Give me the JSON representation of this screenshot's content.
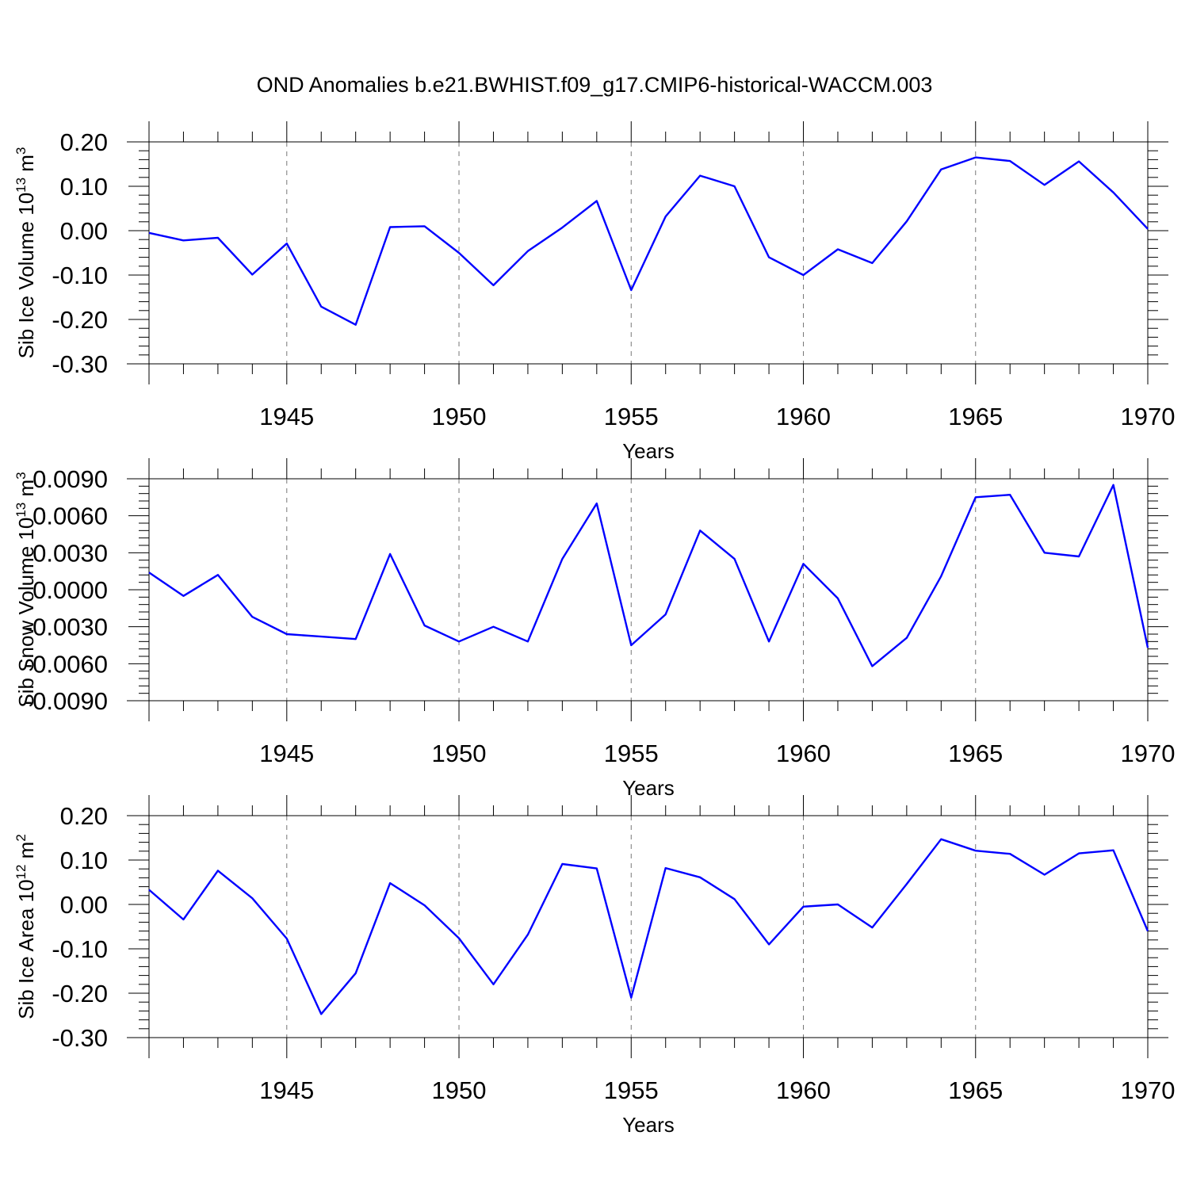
{
  "title": "OND Anomalies b.e21.BWHIST.f09_g17.CMIP6-historical-WACCM.003",
  "colors": {
    "line": "#0000ff",
    "axis": "#000000",
    "grid": "#777777"
  },
  "chart_data": [
    {
      "type": "line",
      "title": "",
      "ylabel": "Sib Ice Volume 10",
      "ylabel_exp": "13",
      "ylabel_unit": " m",
      "ylabel_unit_exp": "3",
      "xlabel": "Years",
      "xlim": [
        1941,
        1970
      ],
      "ylim": [
        -0.3,
        0.2
      ],
      "xticks": [
        "1945",
        "1950",
        "1955",
        "1960",
        "1965",
        "1970"
      ],
      "xtick_values": [
        1945,
        1950,
        1955,
        1960,
        1965,
        1970
      ],
      "yticks": [
        "0.20",
        "0.10",
        "0.00",
        "-0.10",
        "-0.20",
        "-0.30"
      ],
      "ytick_values": [
        0.2,
        0.1,
        0.0,
        -0.1,
        -0.2,
        -0.3
      ],
      "grid": "dashed vertical lines at labeled years",
      "x": [
        1941,
        1942,
        1943,
        1944,
        1945,
        1946,
        1947,
        1948,
        1949,
        1950,
        1951,
        1952,
        1953,
        1954,
        1955,
        1956,
        1957,
        1958,
        1959,
        1960,
        1961,
        1962,
        1963,
        1964,
        1965,
        1966,
        1967,
        1968,
        1969,
        1970
      ],
      "series": [
        {
          "values": [
            -0.005,
            -0.022,
            -0.016,
            -0.099,
            -0.029,
            -0.171,
            -0.212,
            0.008,
            0.01,
            -0.05,
            -0.123,
            -0.046,
            0.007,
            0.067,
            -0.134,
            0.032,
            0.124,
            0.1,
            -0.06,
            -0.1,
            -0.042,
            -0.073,
            0.021,
            0.138,
            0.165,
            0.157,
            0.103,
            0.156,
            0.086,
            0.004
          ]
        }
      ]
    },
    {
      "type": "line",
      "title": "",
      "ylabel": "Sib Snow Volume 10",
      "ylabel_exp": "13",
      "ylabel_unit": " m",
      "ylabel_unit_exp": "3",
      "xlabel": "Years",
      "xlim": [
        1941,
        1970
      ],
      "ylim": [
        -0.009,
        0.009
      ],
      "xticks": [
        "1945",
        "1950",
        "1955",
        "1960",
        "1965",
        "1970"
      ],
      "xtick_values": [
        1945,
        1950,
        1955,
        1960,
        1965,
        1970
      ],
      "yticks": [
        "0.0090",
        "0.0060",
        "0.0030",
        "0.0000",
        "-0.0030",
        "-0.0060",
        "-0.0090"
      ],
      "ytick_values": [
        0.009,
        0.006,
        0.003,
        0.0,
        -0.003,
        -0.006,
        -0.009
      ],
      "grid": "dashed vertical lines at labeled years",
      "x": [
        1941,
        1942,
        1943,
        1944,
        1945,
        1946,
        1947,
        1948,
        1949,
        1950,
        1951,
        1952,
        1953,
        1954,
        1955,
        1956,
        1957,
        1958,
        1959,
        1960,
        1961,
        1962,
        1963,
        1964,
        1965,
        1966,
        1967,
        1968,
        1969,
        1970
      ],
      "series": [
        {
          "values": [
            0.0014,
            -0.0005,
            0.0012,
            -0.0022,
            -0.0036,
            -0.0038,
            -0.004,
            0.0029,
            -0.0029,
            -0.0042,
            -0.003,
            -0.0042,
            0.0025,
            0.007,
            -0.0045,
            -0.002,
            0.0048,
            0.0025,
            -0.0042,
            0.0021,
            -0.0007,
            -0.0062,
            -0.0039,
            0.0011,
            0.0075,
            0.0077,
            0.003,
            0.0027,
            0.0085,
            -0.0047
          ]
        }
      ]
    },
    {
      "type": "line",
      "title": "",
      "ylabel": "Sib Ice Area 10",
      "ylabel_exp": "12",
      "ylabel_unit": " m",
      "ylabel_unit_exp": "2",
      "xlabel": "Years",
      "xlim": [
        1941,
        1970
      ],
      "ylim": [
        -0.3,
        0.2
      ],
      "xticks": [
        "1945",
        "1950",
        "1955",
        "1960",
        "1965",
        "1970"
      ],
      "xtick_values": [
        1945,
        1950,
        1955,
        1960,
        1965,
        1970
      ],
      "yticks": [
        "0.20",
        "0.10",
        "0.00",
        "-0.10",
        "-0.20",
        "-0.30"
      ],
      "ytick_values": [
        0.2,
        0.1,
        0.0,
        -0.1,
        -0.2,
        -0.3
      ],
      "grid": "dashed vertical lines at labeled years",
      "x": [
        1941,
        1942,
        1943,
        1944,
        1945,
        1946,
        1947,
        1948,
        1949,
        1950,
        1951,
        1952,
        1953,
        1954,
        1955,
        1956,
        1957,
        1958,
        1959,
        1960,
        1961,
        1962,
        1963,
        1964,
        1965,
        1966,
        1967,
        1968,
        1969,
        1970
      ],
      "series": [
        {
          "values": [
            0.033,
            -0.034,
            0.076,
            0.014,
            -0.077,
            -0.247,
            -0.155,
            0.048,
            -0.002,
            -0.076,
            -0.18,
            -0.068,
            0.091,
            0.081,
            -0.21,
            0.082,
            0.061,
            0.012,
            -0.09,
            -0.005,
            0.0,
            -0.052,
            0.046,
            0.147,
            0.121,
            0.114,
            0.067,
            0.115,
            0.122,
            -0.06
          ]
        }
      ]
    }
  ]
}
